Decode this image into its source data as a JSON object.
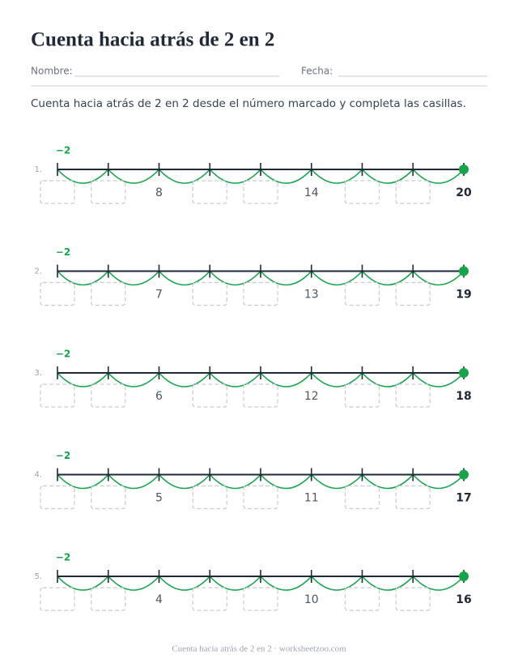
{
  "header": {
    "title": "Cuenta hacia atrás de 2 en 2",
    "name_label": "Nombre:",
    "date_label": "Fecha:"
  },
  "instructions": "Cuenta hacia atrás de 2 en 2 desde el número marcado y completa las casillas.",
  "problems": [
    {
      "label": "1.",
      "step": "−2",
      "numbers": [
        8,
        14,
        20
      ]
    },
    {
      "label": "2.",
      "step": "−2",
      "numbers": [
        7,
        13,
        19
      ]
    },
    {
      "label": "3.",
      "step": "−2",
      "numbers": [
        6,
        12,
        18
      ]
    },
    {
      "label": "4.",
      "step": "−2",
      "numbers": [
        5,
        11,
        17
      ]
    },
    {
      "label": "5.",
      "step": "−2",
      "numbers": [
        4,
        10,
        16
      ]
    }
  ],
  "footer": "Cuenta hacia atrás de 2 en 2 · worksheetzoo.com"
}
